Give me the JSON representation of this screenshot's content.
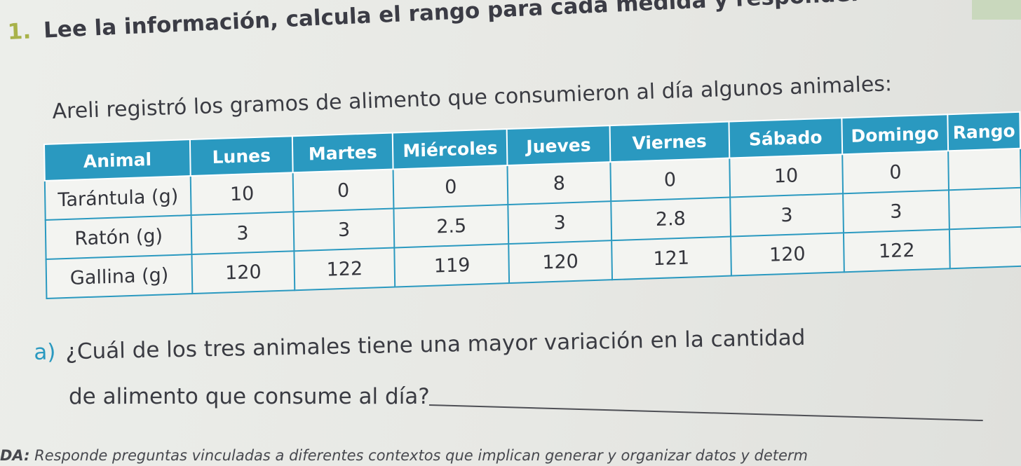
{
  "exercise": {
    "number": "1.",
    "instruction": "Lee la información, calcula el rango para cada medida y responde."
  },
  "intro": "Areli registró los gramos de alimento que consumieron al día algunos animales:",
  "table": {
    "headers": [
      "Animal",
      "Lunes",
      "Martes",
      "Miércoles",
      "Jueves",
      "Viernes",
      "Sábado",
      "Domingo",
      "Rango"
    ],
    "rows": [
      {
        "animal": "Tarántula (g)",
        "values": [
          "10",
          "0",
          "0",
          "8",
          "0",
          "10",
          "0"
        ],
        "range": ""
      },
      {
        "animal": "Ratón (g)",
        "values": [
          "3",
          "3",
          "2.5",
          "3",
          "2.8",
          "3",
          "3"
        ],
        "range": ""
      },
      {
        "animal": "Gallina (g)",
        "values": [
          "120",
          "122",
          "119",
          "120",
          "121",
          "120",
          "122"
        ],
        "range": ""
      }
    ]
  },
  "question_a": {
    "letter": "a)",
    "line1": "¿Cuál de los tres animales tiene una mayor variación en la cantidad",
    "line2": "de alimento que consume al día?"
  },
  "footer": {
    "label": "DA:",
    "text": " Responde preguntas vinculadas a diferentes contextos que implican generar y organizar datos y determ"
  }
}
